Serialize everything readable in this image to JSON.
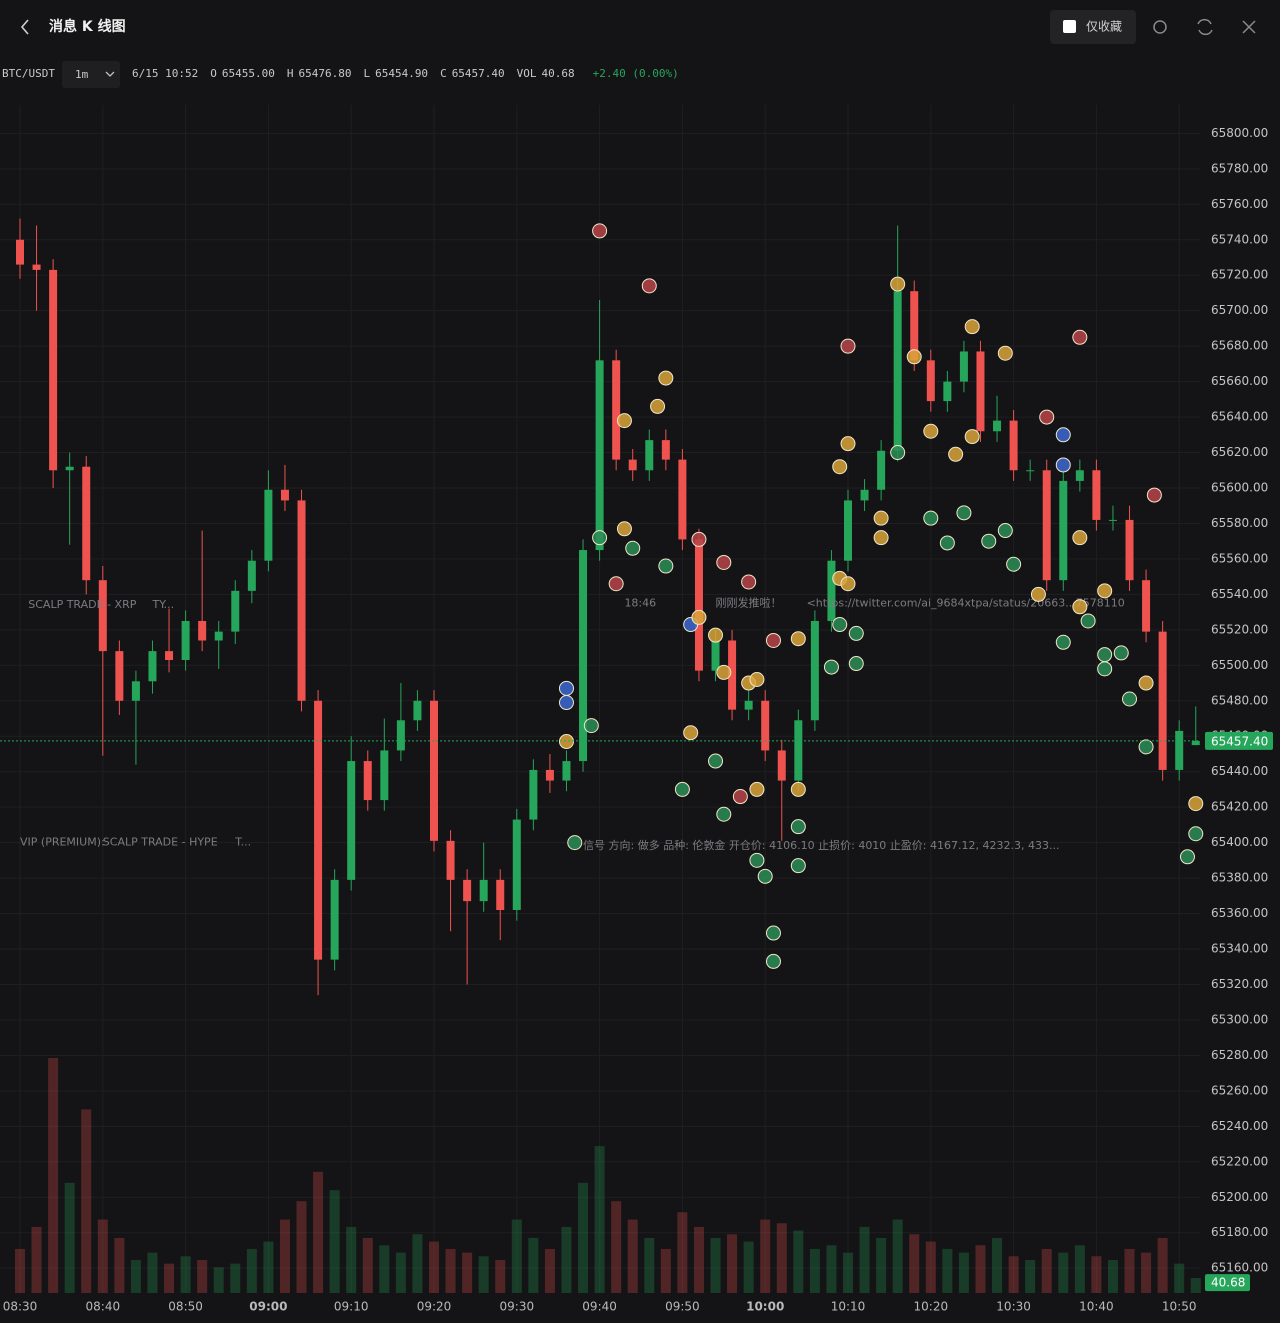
{
  "header": {
    "title": "消息 K 线图",
    "favorites_only": "仅收藏"
  },
  "chart_data": {
    "type": "candlestick",
    "symbol": "BTC/USDT",
    "interval": "1m",
    "readout": {
      "time": "6/15 10:52",
      "fields": [
        {
          "label": "O",
          "value": "65455.00"
        },
        {
          "label": "H",
          "value": "65476.80"
        },
        {
          "label": "L",
          "value": "65454.90"
        },
        {
          "label": "C",
          "value": "65457.40"
        },
        {
          "label": "VOL",
          "value": "40.68"
        }
      ],
      "change": "+2.40 (0.00%)"
    },
    "up_color": "#26a65b",
    "down_color": "#ef5350",
    "x": [
      "08:30",
      "08:32",
      "08:34",
      "08:36",
      "08:38",
      "08:40",
      "08:42",
      "08:44",
      "08:46",
      "08:48",
      "08:50",
      "08:52",
      "08:54",
      "08:56",
      "08:58",
      "09:00",
      "09:02",
      "09:04",
      "09:06",
      "09:08",
      "09:10",
      "09:12",
      "09:14",
      "09:16",
      "09:18",
      "09:20",
      "09:22",
      "09:24",
      "09:26",
      "09:28",
      "09:30",
      "09:32",
      "09:34",
      "09:36",
      "09:38",
      "09:40",
      "09:42",
      "09:44",
      "09:46",
      "09:48",
      "09:50",
      "09:52",
      "09:54",
      "09:56",
      "09:58",
      "10:00",
      "10:02",
      "10:04",
      "10:06",
      "10:08",
      "10:10",
      "10:12",
      "10:14",
      "10:16",
      "10:18",
      "10:20",
      "10:22",
      "10:24",
      "10:26",
      "10:28",
      "10:30",
      "10:32",
      "10:34",
      "10:36",
      "10:38",
      "10:40",
      "10:42",
      "10:44",
      "10:46",
      "10:48",
      "10:50",
      "10:52"
    ],
    "open": [
      65740,
      65726,
      65723,
      65610,
      65612,
      65548,
      65508,
      65480,
      65491,
      65508,
      65503,
      65525,
      65514,
      65519,
      65542,
      65559,
      65599,
      65593,
      65480,
      65334,
      65379,
      65446,
      65424,
      65452,
      65469,
      65480,
      65401,
      65379,
      65367,
      65379,
      65362,
      65413,
      65441,
      65435,
      65446,
      65565,
      65672,
      65616,
      65610,
      65627,
      65616,
      65571,
      65497,
      65514,
      65475,
      65480,
      65452,
      65435,
      65469,
      65525,
      65559,
      65593,
      65599,
      65621,
      65711,
      65672,
      65649,
      65660,
      65677,
      65632,
      65638,
      65610,
      65610,
      65548,
      65604,
      65610,
      65582,
      65582,
      65548,
      65519,
      65441,
      65455
    ],
    "high": [
      65752,
      65748,
      65729,
      65620,
      65618,
      65556,
      65514,
      65497,
      65514,
      65532,
      65531,
      65576,
      65525,
      65548,
      65565,
      65610,
      65613,
      65599,
      65486,
      65385,
      65460,
      65452,
      65470,
      65490,
      65486,
      65486,
      65407,
      65385,
      65400,
      65385,
      65419,
      65447,
      65450,
      65452,
      65571,
      65706,
      65678,
      65622,
      65633,
      65633,
      65622,
      65577,
      65520,
      65520,
      65486,
      65486,
      65458,
      65475,
      65531,
      65565,
      65599,
      65605,
      65627,
      65748,
      65717,
      65678,
      65666,
      65683,
      65683,
      65652,
      65644,
      65616,
      65616,
      65610,
      65616,
      65616,
      65590,
      65590,
      65554,
      65525,
      65469,
      65476.8
    ],
    "low": [
      65718,
      65700,
      65600,
      65568,
      65540,
      65449,
      65472,
      65444,
      65484,
      65496,
      65497,
      65508,
      65498,
      65512,
      65535,
      65553,
      65587,
      65474,
      65314,
      65328,
      65373,
      65418,
      65418,
      65446,
      65463,
      65395,
      65350,
      65320,
      65361,
      65345,
      65356,
      65407,
      65428,
      65429,
      65440,
      65559,
      65610,
      65604,
      65604,
      65610,
      65565,
      65491,
      65491,
      65469,
      65469,
      65446,
      65401,
      65429,
      65463,
      65519,
      65553,
      65587,
      65593,
      65615,
      65666,
      65643,
      65643,
      65654,
      65626,
      65626,
      65604,
      65604,
      65542,
      65542,
      65598,
      65576,
      65576,
      65542,
      65513,
      65435,
      65435,
      65454.9
    ],
    "close": [
      65726,
      65723,
      65610,
      65612,
      65548,
      65508,
      65480,
      65491,
      65508,
      65503,
      65525,
      65514,
      65519,
      65542,
      65559,
      65599,
      65593,
      65480,
      65334,
      65379,
      65446,
      65424,
      65452,
      65469,
      65480,
      65401,
      65379,
      65367,
      65379,
      65362,
      65413,
      65441,
      65435,
      65446,
      65565,
      65672,
      65616,
      65610,
      65627,
      65616,
      65571,
      65497,
      65514,
      65475,
      65480,
      65452,
      65435,
      65469,
      65525,
      65559,
      65593,
      65599,
      65621,
      65711,
      65672,
      65649,
      65660,
      65677,
      65632,
      65638,
      65610,
      65610,
      65548,
      65604,
      65610,
      65582,
      65582,
      65548,
      65519,
      65441,
      65463,
      65457.4
    ],
    "volume": [
      120,
      180,
      640,
      300,
      500,
      200,
      150,
      90,
      110,
      80,
      100,
      90,
      70,
      80,
      120,
      140,
      200,
      250,
      330,
      280,
      180,
      150,
      130,
      110,
      160,
      140,
      120,
      110,
      100,
      90,
      200,
      150,
      120,
      180,
      300,
      400,
      250,
      200,
      150,
      120,
      220,
      180,
      150,
      160,
      140,
      200,
      190,
      170,
      120,
      130,
      110,
      180,
      150,
      200,
      160,
      140,
      120,
      110,
      130,
      150,
      100,
      90,
      120,
      110,
      130,
      100,
      90,
      120,
      110,
      150,
      80,
      40.68
    ],
    "last_price": {
      "value": 65457.4,
      "label": "65457.40"
    },
    "ylim": [
      65146,
      65816
    ],
    "yticks": [
      {
        "value": 65160,
        "label": "65160.00"
      },
      {
        "value": 65180,
        "label": "65180.00"
      },
      {
        "value": 65200,
        "label": "65200.00"
      },
      {
        "value": 65220,
        "label": "65220.00"
      },
      {
        "value": 65240,
        "label": "65240.00"
      },
      {
        "value": 65260,
        "label": "65260.00"
      },
      {
        "value": 65280,
        "label": "65280.00"
      },
      {
        "value": 65300,
        "label": "65300.00"
      },
      {
        "value": 65320,
        "label": "65320.00"
      },
      {
        "value": 65340,
        "label": "65340.00"
      },
      {
        "value": 65360,
        "label": "65360.00"
      },
      {
        "value": 65380,
        "label": "65380.00"
      },
      {
        "value": 65400,
        "label": "65400.00"
      },
      {
        "value": 65420,
        "label": "65420.00"
      },
      {
        "value": 65440,
        "label": "65440.00"
      },
      {
        "value": 65460,
        "label": "65460.00"
      },
      {
        "value": 65480,
        "label": "65480.00"
      },
      {
        "value": 65500,
        "label": "65500.00"
      },
      {
        "value": 65520,
        "label": "65520.00"
      },
      {
        "value": 65540,
        "label": "65540.00"
      },
      {
        "value": 65560,
        "label": "65560.00"
      },
      {
        "value": 65580,
        "label": "65580.00"
      },
      {
        "value": 65600,
        "label": "65600.00"
      },
      {
        "value": 65620,
        "label": "65620.00"
      },
      {
        "value": 65640,
        "label": "65640.00"
      },
      {
        "value": 65660,
        "label": "65660.00"
      },
      {
        "value": 65680,
        "label": "65680.00"
      },
      {
        "value": 65700,
        "label": "65700.00"
      },
      {
        "value": 65720,
        "label": "65720.00"
      },
      {
        "value": 65740,
        "label": "65740.00"
      },
      {
        "value": 65760,
        "label": "65760.00"
      },
      {
        "value": 65780,
        "label": "65780.00"
      },
      {
        "value": 65800,
        "label": "65800.00"
      }
    ],
    "xticks": [
      "08:30",
      "08:40",
      "08:50",
      "09:00",
      "09:10",
      "09:20",
      "09:30",
      "09:40",
      "09:50",
      "10:00",
      "10:10",
      "10:20",
      "10:30",
      "10:40",
      "10:50"
    ],
    "grid": true,
    "marker_colors": {
      "gold": "#d9a43a",
      "green": "#2b8d57",
      "red": "#b8444a",
      "blue": "#3c69d4"
    },
    "markers": [
      [
        "09:40",
        65745,
        "red"
      ],
      [
        "09:46",
        65714,
        "red"
      ],
      [
        "09:48",
        65662,
        "gold"
      ],
      [
        "09:43",
        65638,
        "gold"
      ],
      [
        "09:47",
        65646,
        "gold"
      ],
      [
        "09:40",
        65572,
        "green"
      ],
      [
        "09:43",
        65577,
        "gold"
      ],
      [
        "09:44",
        65566,
        "green"
      ],
      [
        "09:48",
        65556,
        "green"
      ],
      [
        "09:52",
        65571,
        "red"
      ],
      [
        "09:55",
        65558,
        "red"
      ],
      [
        "09:58",
        65547,
        "red"
      ],
      [
        "09:51",
        65523,
        "blue"
      ],
      [
        "09:52",
        65527,
        "gold"
      ],
      [
        "09:54",
        65517,
        "gold"
      ],
      [
        "09:55",
        65496,
        "gold"
      ],
      [
        "09:58",
        65490,
        "gold"
      ],
      [
        "09:59",
        65492,
        "gold"
      ],
      [
        "09:51",
        65462,
        "gold"
      ],
      [
        "09:50",
        65430,
        "green"
      ],
      [
        "09:54",
        65446,
        "green"
      ],
      [
        "09:55",
        65416,
        "green"
      ],
      [
        "09:57",
        65426,
        "red"
      ],
      [
        "09:59",
        65430,
        "gold"
      ],
      [
        "10:04",
        65430,
        "gold"
      ],
      [
        "10:04",
        65409,
        "green"
      ],
      [
        "09:59",
        65390,
        "green"
      ],
      [
        "10:00",
        65381,
        "green"
      ],
      [
        "10:04",
        65387,
        "green"
      ],
      [
        "10:01",
        65349,
        "green"
      ],
      [
        "10:01",
        65333,
        "green"
      ],
      [
        "09:36",
        65487,
        "blue"
      ],
      [
        "09:36",
        65479,
        "blue"
      ],
      [
        "09:39",
        65466,
        "green"
      ],
      [
        "09:36",
        65457,
        "gold"
      ],
      [
        "09:37",
        65400,
        "green"
      ],
      [
        "09:42",
        65546,
        "red"
      ],
      [
        "10:01",
        65514,
        "red"
      ],
      [
        "10:04",
        65515,
        "gold"
      ],
      [
        "10:10",
        65680,
        "red"
      ],
      [
        "10:10",
        65625,
        "gold"
      ],
      [
        "10:09",
        65612,
        "gold"
      ],
      [
        "10:14",
        65583,
        "gold"
      ],
      [
        "10:14",
        65572,
        "gold"
      ],
      [
        "10:16",
        65715,
        "gold"
      ],
      [
        "10:18",
        65674,
        "gold"
      ],
      [
        "10:16",
        65620,
        "green"
      ],
      [
        "10:25",
        65691,
        "gold"
      ],
      [
        "10:29",
        65676,
        "gold"
      ],
      [
        "10:20",
        65632,
        "gold"
      ],
      [
        "10:23",
        65619,
        "gold"
      ],
      [
        "10:25",
        65629,
        "gold"
      ],
      [
        "10:20",
        65583,
        "green"
      ],
      [
        "10:24",
        65586,
        "green"
      ],
      [
        "10:22",
        65569,
        "green"
      ],
      [
        "10:27",
        65570,
        "green"
      ],
      [
        "10:29",
        65576,
        "green"
      ],
      [
        "10:09",
        65549,
        "gold"
      ],
      [
        "10:10",
        65546,
        "gold"
      ],
      [
        "10:09",
        65523,
        "green"
      ],
      [
        "10:11",
        65518,
        "green"
      ],
      [
        "10:08",
        65499,
        "green"
      ],
      [
        "10:11",
        65501,
        "green"
      ],
      [
        "10:38",
        65685,
        "red"
      ],
      [
        "10:34",
        65640,
        "red"
      ],
      [
        "10:36",
        65630,
        "blue"
      ],
      [
        "10:36",
        65613,
        "blue"
      ],
      [
        "10:47",
        65596,
        "red"
      ],
      [
        "10:38",
        65572,
        "gold"
      ],
      [
        "10:30",
        65557,
        "green"
      ],
      [
        "10:33",
        65540,
        "gold"
      ],
      [
        "10:38",
        65533,
        "gold"
      ],
      [
        "10:39",
        65525,
        "green"
      ],
      [
        "10:41",
        65542,
        "gold"
      ],
      [
        "10:36",
        65513,
        "green"
      ],
      [
        "10:41",
        65506,
        "green"
      ],
      [
        "10:43",
        65507,
        "green"
      ],
      [
        "10:41",
        65498,
        "green"
      ],
      [
        "10:44",
        65481,
        "green"
      ],
      [
        "10:46",
        65490,
        "gold"
      ],
      [
        "10:46",
        65454,
        "green"
      ],
      [
        "10:52",
        65422,
        "gold"
      ],
      [
        "10:52",
        65405,
        "green"
      ],
      [
        "10:51",
        65392,
        "green"
      ]
    ],
    "annotations": [
      [
        "08:31",
        65534,
        "SCALP TRADE - XRP"
      ],
      [
        "08:46",
        65534,
        "TY..."
      ],
      [
        "08:30",
        65400,
        "VIP (PREMIUM):"
      ],
      [
        "08:40",
        65400,
        "SCALP TRADE - HYPE"
      ],
      [
        "08:56",
        65400,
        "T..."
      ],
      [
        "09:43",
        65535,
        "18:46"
      ],
      [
        "09:54",
        65535,
        "刚刚发推啦！"
      ],
      [
        "10:05",
        65535,
        "<https://twitter.com/ai_9684xtpa/status/20663...7578110"
      ],
      [
        "09:38",
        65398,
        "信号 方向: 做多 品种: 伦敦金 开仓价: 4106.10 止损价: 4010 止盈价: 4167.12, 4232.3, 433..."
      ]
    ]
  }
}
